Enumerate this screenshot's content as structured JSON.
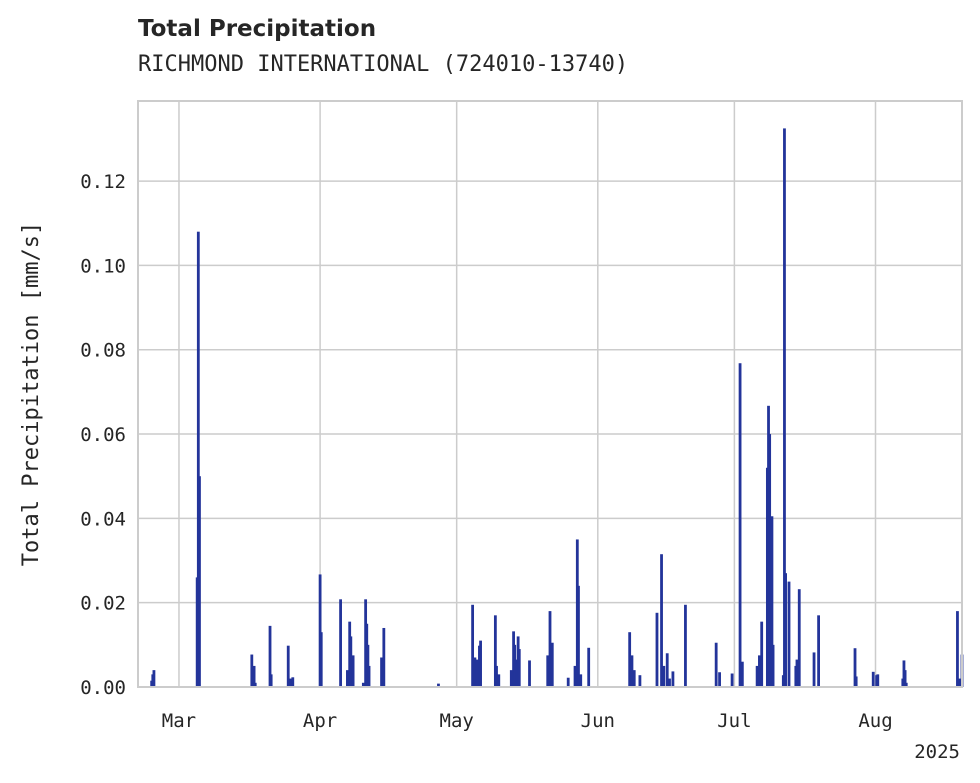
{
  "chart_data": {
    "type": "bar",
    "title": "Total Precipitation",
    "subtitle": "RICHMOND INTERNATIONAL (724010-13740)",
    "ylabel": "Total Precipitation [mm/s]",
    "xlabel": "",
    "x_range": [
      "2025-02-20",
      "2025-08-20"
    ],
    "ylim": [
      0,
      0.139
    ],
    "y_ticks": [
      0.0,
      0.02,
      0.04,
      0.06,
      0.08,
      0.1,
      0.12
    ],
    "y_tick_labels": [
      "0.00",
      "0.02",
      "0.04",
      "0.06",
      "0.08",
      "0.10",
      "0.12"
    ],
    "x_ticks": [
      {
        "date": "2025-03-01",
        "label": "Mar"
      },
      {
        "date": "2025-04-01",
        "label": "Apr"
      },
      {
        "date": "2025-05-01",
        "label": "May"
      },
      {
        "date": "2025-06-01",
        "label": "Jun"
      },
      {
        "date": "2025-07-01",
        "label": "Jul"
      },
      {
        "date": "2025-08-01",
        "label": "Aug"
      }
    ],
    "year_label": "2025",
    "grid": true,
    "color": "#23349a",
    "points": [
      [
        "2025-02-23T00:00",
        0.0015
      ],
      [
        "2025-02-23T06:00",
        0.003
      ],
      [
        "2025-02-23T12:00",
        0.004
      ],
      [
        "2025-03-05T00:00",
        0.026
      ],
      [
        "2025-03-05T06:00",
        0.108
      ],
      [
        "2025-03-05T12:00",
        0.05
      ],
      [
        "2025-03-17T00:00",
        0.0077
      ],
      [
        "2025-03-17T12:00",
        0.005
      ],
      [
        "2025-03-17T18:00",
        0.001
      ],
      [
        "2025-03-21T00:00",
        0.0145
      ],
      [
        "2025-03-21T06:00",
        0.003
      ],
      [
        "2025-03-25T00:00",
        0.0098
      ],
      [
        "2025-03-25T12:00",
        0.002
      ],
      [
        "2025-03-26T00:00",
        0.0023
      ],
      [
        "2025-04-01T00:00",
        0.0267
      ],
      [
        "2025-04-01T06:00",
        0.013
      ],
      [
        "2025-04-05T12:00",
        0.0208
      ],
      [
        "2025-04-07T00:00",
        0.004
      ],
      [
        "2025-04-07T12:00",
        0.0155
      ],
      [
        "2025-04-07T18:00",
        0.012
      ],
      [
        "2025-04-08T06:00",
        0.0075
      ],
      [
        "2025-04-10T12:00",
        0.001
      ],
      [
        "2025-04-11T00:00",
        0.0208
      ],
      [
        "2025-04-11T06:00",
        0.015
      ],
      [
        "2025-04-11T12:00",
        0.01
      ],
      [
        "2025-04-11T18:00",
        0.005
      ],
      [
        "2025-04-14T12:00",
        0.007
      ],
      [
        "2025-04-15T00:00",
        0.014
      ],
      [
        "2025-04-27T00:00",
        0.0008
      ],
      [
        "2025-05-04T12:00",
        0.0195
      ],
      [
        "2025-05-05T00:00",
        0.007
      ],
      [
        "2025-05-05T12:00",
        0.0065
      ],
      [
        "2025-05-06T00:00",
        0.0098
      ],
      [
        "2025-05-06T06:00",
        0.011
      ],
      [
        "2025-05-09T12:00",
        0.017
      ],
      [
        "2025-05-09T18:00",
        0.005
      ],
      [
        "2025-05-10T06:00",
        0.003
      ],
      [
        "2025-05-13T00:00",
        0.004
      ],
      [
        "2025-05-13T12:00",
        0.0132
      ],
      [
        "2025-05-13T18:00",
        0.01
      ],
      [
        "2025-05-14T06:00",
        0.0065
      ],
      [
        "2025-05-14T12:00",
        0.012
      ],
      [
        "2025-05-14T18:00",
        0.009
      ],
      [
        "2025-05-17T00:00",
        0.0063
      ],
      [
        "2025-05-21T00:00",
        0.0075
      ],
      [
        "2025-05-21T12:00",
        0.018
      ],
      [
        "2025-05-22T00:00",
        0.0105
      ],
      [
        "2025-05-25T12:00",
        0.0022
      ],
      [
        "2025-05-27T00:00",
        0.005
      ],
      [
        "2025-05-27T12:00",
        0.035
      ],
      [
        "2025-05-27T18:00",
        0.024
      ],
      [
        "2025-05-28T06:00",
        0.003
      ],
      [
        "2025-05-30T00:00",
        0.0093
      ],
      [
        "2025-06-08T00:00",
        0.013
      ],
      [
        "2025-06-08T12:00",
        0.0075
      ],
      [
        "2025-06-09T00:00",
        0.004
      ],
      [
        "2025-06-10T06:00",
        0.0028
      ],
      [
        "2025-06-14T00:00",
        0.0176
      ],
      [
        "2025-06-15T00:00",
        0.0315
      ],
      [
        "2025-06-15T12:00",
        0.005
      ],
      [
        "2025-06-16T06:00",
        0.008
      ],
      [
        "2025-06-16T18:00",
        0.002
      ],
      [
        "2025-06-17T12:00",
        0.0037
      ],
      [
        "2025-06-20T06:00",
        0.0195
      ],
      [
        "2025-06-27T00:00",
        0.0105
      ],
      [
        "2025-06-27T18:00",
        0.0035
      ],
      [
        "2025-06-30T12:00",
        0.0032
      ],
      [
        "2025-07-02T06:00",
        0.0768
      ],
      [
        "2025-07-02T18:00",
        0.006
      ],
      [
        "2025-07-06T00:00",
        0.005
      ],
      [
        "2025-07-06T12:00",
        0.0075
      ],
      [
        "2025-07-07T00:00",
        0.0155
      ],
      [
        "2025-07-08T06:00",
        0.052
      ],
      [
        "2025-07-08T12:00",
        0.0667
      ],
      [
        "2025-07-08T18:00",
        0.06
      ],
      [
        "2025-07-09T06:00",
        0.0405
      ],
      [
        "2025-07-09T12:00",
        0.01
      ],
      [
        "2025-07-11T18:00",
        0.0028
      ],
      [
        "2025-07-12T00:00",
        0.1325
      ],
      [
        "2025-07-12T06:00",
        0.027
      ],
      [
        "2025-07-13T00:00",
        0.025
      ],
      [
        "2025-07-14T12:00",
        0.005
      ],
      [
        "2025-07-14T18:00",
        0.0065
      ],
      [
        "2025-07-15T06:00",
        0.0232
      ],
      [
        "2025-07-18T12:00",
        0.0082
      ],
      [
        "2025-07-19T12:00",
        0.017
      ],
      [
        "2025-07-27T12:00",
        0.0092
      ],
      [
        "2025-07-27T18:00",
        0.0025
      ],
      [
        "2025-07-31T12:00",
        0.0036
      ],
      [
        "2025-08-01T06:00",
        0.0028
      ],
      [
        "2025-08-01T12:00",
        0.003
      ],
      [
        "2025-08-07T00:00",
        0.002
      ],
      [
        "2025-08-07T06:00",
        0.0063
      ],
      [
        "2025-08-07T12:00",
        0.004
      ],
      [
        "2025-08-07T18:00",
        0.001
      ],
      [
        "2025-08-19T00:00",
        0.018
      ],
      [
        "2025-08-19T12:00",
        0.002
      ],
      [
        "2025-08-20T00:00",
        0.0077
      ]
    ]
  }
}
